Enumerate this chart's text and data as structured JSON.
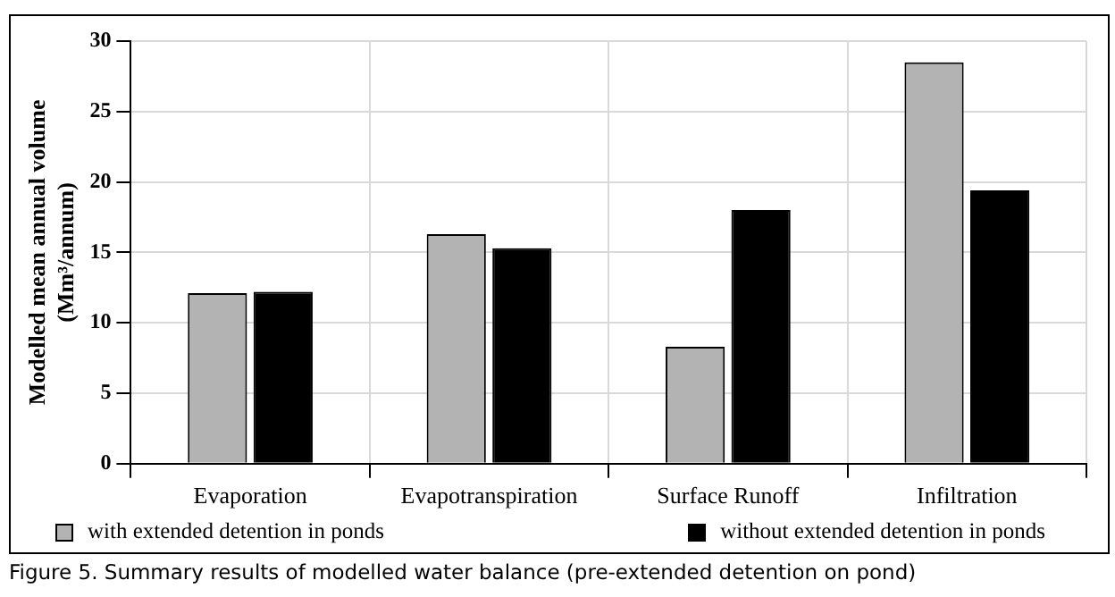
{
  "chart_data": {
    "type": "bar",
    "ylabel": "Modelled mean annual volume\n(Mm³/annum)",
    "categories": [
      "Evaporation",
      "Evapotranspiration",
      "Surface Runoff",
      "Infiltration"
    ],
    "series": [
      {
        "name": "with extended detention in ponds",
        "color": "#b3b3b3",
        "values": [
          12.1,
          16.3,
          8.3,
          28.5
        ]
      },
      {
        "name": "without extended detention in ponds",
        "color": "#000000",
        "values": [
          12.2,
          15.3,
          18.0,
          19.4
        ]
      }
    ],
    "ylim": [
      0,
      30
    ],
    "yticks": [
      0,
      5,
      10,
      15,
      20,
      25,
      30
    ],
    "grid": true,
    "legend": "bottom",
    "annotations": [
      "Figure 5. Summary results of modelled water balance (pre-extended detention on pond)"
    ]
  }
}
